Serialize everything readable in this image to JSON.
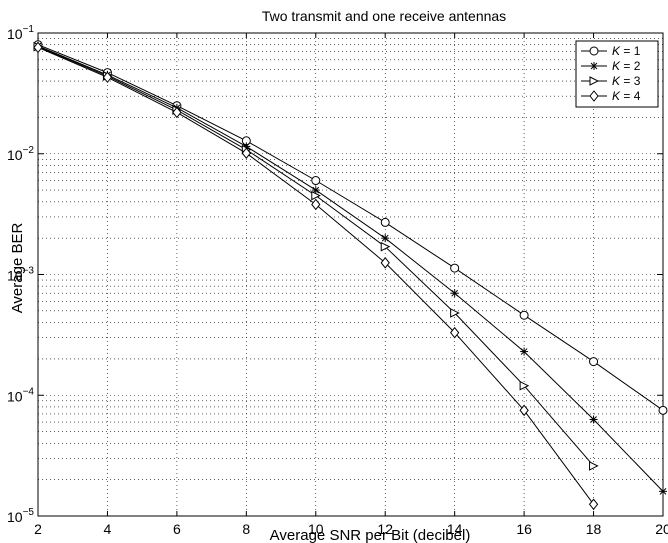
{
  "chart_data": {
    "type": "line",
    "title": "Two transmit and one receive antennas",
    "xlabel": "Average SNR per Bit (decibel)",
    "ylabel": "Average BER",
    "xlim": [
      2,
      20
    ],
    "ylim": [
      1e-05,
      0.1
    ],
    "yscale": "log",
    "grid": true,
    "legend_position": "top-right",
    "x_ticks": [
      2,
      4,
      6,
      8,
      10,
      12,
      14,
      16,
      18,
      20
    ],
    "y_ticks": [
      {
        "base": "10",
        "exp": "−1",
        "value": 0.1
      },
      {
        "base": "10",
        "exp": "−2",
        "value": 0.01
      },
      {
        "base": "10",
        "exp": "−3",
        "value": 0.001
      },
      {
        "base": "10",
        "exp": "−4",
        "value": 0.0001
      },
      {
        "base": "10",
        "exp": "−5",
        "value": 1e-05
      }
    ],
    "series": [
      {
        "name": "K = 1",
        "label_var": "K",
        "label_val": "= 1",
        "marker": "circle",
        "x": [
          2,
          4,
          6,
          8,
          10,
          12,
          14,
          16,
          18,
          20
        ],
        "y": [
          0.08,
          0.047,
          0.025,
          0.0128,
          0.006,
          0.0027,
          0.00113,
          0.00046,
          0.00019,
          7.5e-05
        ]
      },
      {
        "name": "K = 2",
        "label_var": "K",
        "label_val": "= 2",
        "marker": "star",
        "x": [
          2,
          4,
          6,
          8,
          10,
          12,
          14,
          16,
          18,
          20
        ],
        "y": [
          0.078,
          0.045,
          0.024,
          0.0115,
          0.005,
          0.002,
          0.0007,
          0.00023,
          6.3e-05,
          1.6e-05
        ]
      },
      {
        "name": "K = 3",
        "label_var": "K",
        "label_val": "= 3",
        "marker": "triangle-right",
        "x": [
          2,
          4,
          6,
          8,
          10,
          12,
          14,
          16,
          18
        ],
        "y": [
          0.077,
          0.044,
          0.023,
          0.0108,
          0.0045,
          0.0017,
          0.00048,
          0.00012,
          2.6e-05
        ]
      },
      {
        "name": "K = 4",
        "label_var": "K",
        "label_val": "= 4",
        "marker": "diamond",
        "x": [
          2,
          4,
          6,
          8,
          10,
          12,
          14,
          16,
          18
        ],
        "y": [
          0.076,
          0.043,
          0.022,
          0.0101,
          0.0038,
          0.00125,
          0.00033,
          7.5e-05,
          1.25e-05
        ]
      }
    ]
  }
}
